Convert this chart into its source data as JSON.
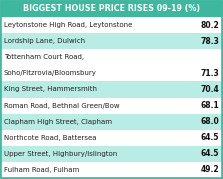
{
  "title": "BIGGEST HOUSE PRICE RISES 09-19 (%)",
  "rows": [
    {
      "label": "Leytonstone High Road, Leytonstone",
      "value": "80.2",
      "highlight": false
    },
    {
      "label": "Lordship Lane, Dulwich",
      "value": "78.3",
      "highlight": true
    },
    {
      "label": "Tottenham Court Road,\nSoho/Fitzrovia/Bloomsbury",
      "value": "71.3",
      "highlight": false
    },
    {
      "label": "King Street, Hammersmith",
      "value": "70.4",
      "highlight": true
    },
    {
      "label": "Roman Road, Bethnal Green/Bow",
      "value": "68.1",
      "highlight": false
    },
    {
      "label": "Clapham High Street, Clapham",
      "value": "68.0",
      "highlight": true
    },
    {
      "label": "Northcote Road, Battersea",
      "value": "64.5",
      "highlight": false
    },
    {
      "label": "Upper Street, Highbury/Islington",
      "value": "64.5",
      "highlight": true
    },
    {
      "label": "Fulham Road, Fulham",
      "value": "49.2",
      "highlight": false
    }
  ],
  "title_bg": "#3db89e",
  "highlight_bg": "#b8ece4",
  "white_bg": "#ffffff",
  "title_color": "#ffffff",
  "label_color": "#222222",
  "value_color": "#111111",
  "border_color": "#3db89e",
  "title_fontsize": 5.8,
  "row_fontsize": 5.0,
  "value_fontsize": 5.5
}
